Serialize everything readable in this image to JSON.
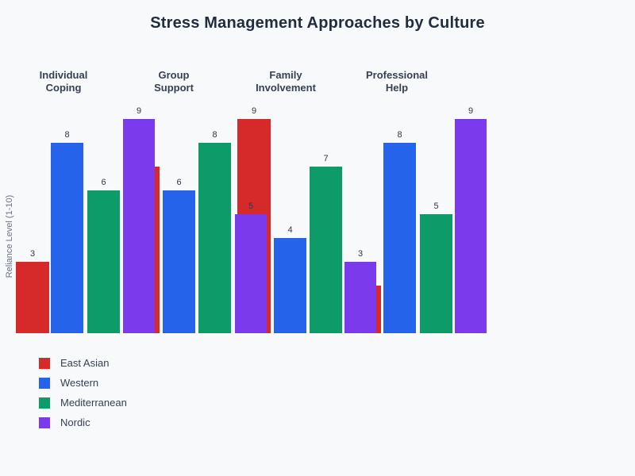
{
  "page": {
    "background_color": "#f8f9fb"
  },
  "chart_data": {
    "type": "bar",
    "title": "Stress Management Approaches by Culture",
    "xlabel": "",
    "ylabel": "Reliance Level (1-10)",
    "categories": [
      "Individual Coping",
      "Group Support",
      "Family Involvement",
      "Professional Help"
    ],
    "categories_lines": [
      [
        "Individual",
        "Coping"
      ],
      [
        "Group",
        "Support"
      ],
      [
        "Family",
        "Involvement"
      ],
      [
        "Professional",
        "Help"
      ]
    ],
    "series": [
      {
        "name": "East Asian",
        "color": "#d62a2a",
        "values": [
          3,
          7,
          9,
          2
        ]
      },
      {
        "name": "Western",
        "color": "#2563eb",
        "values": [
          8,
          6,
          4,
          8
        ]
      },
      {
        "name": "Mediterranean",
        "color": "#0d9b69",
        "values": [
          6,
          8,
          7,
          5
        ]
      },
      {
        "name": "Nordic",
        "color": "#7c3aed",
        "values": [
          9,
          5,
          3,
          9
        ]
      }
    ],
    "ylim": [
      0,
      10
    ],
    "bar_value_labels_visible": true,
    "visible_bar_labels": [
      3,
      8,
      6,
      9,
      6,
      8,
      5,
      9,
      4,
      7,
      3,
      8,
      5,
      9
    ],
    "legend_position": "bottom-left",
    "grid": false,
    "axis_tick_labels": false,
    "occlusion_note": "Nordic bars overlap the East Asian bar of the next category; East Asian values 7 (Group Support) and 2 (Professional Help) are hidden except for a thin red sliver at the right edge."
  }
}
